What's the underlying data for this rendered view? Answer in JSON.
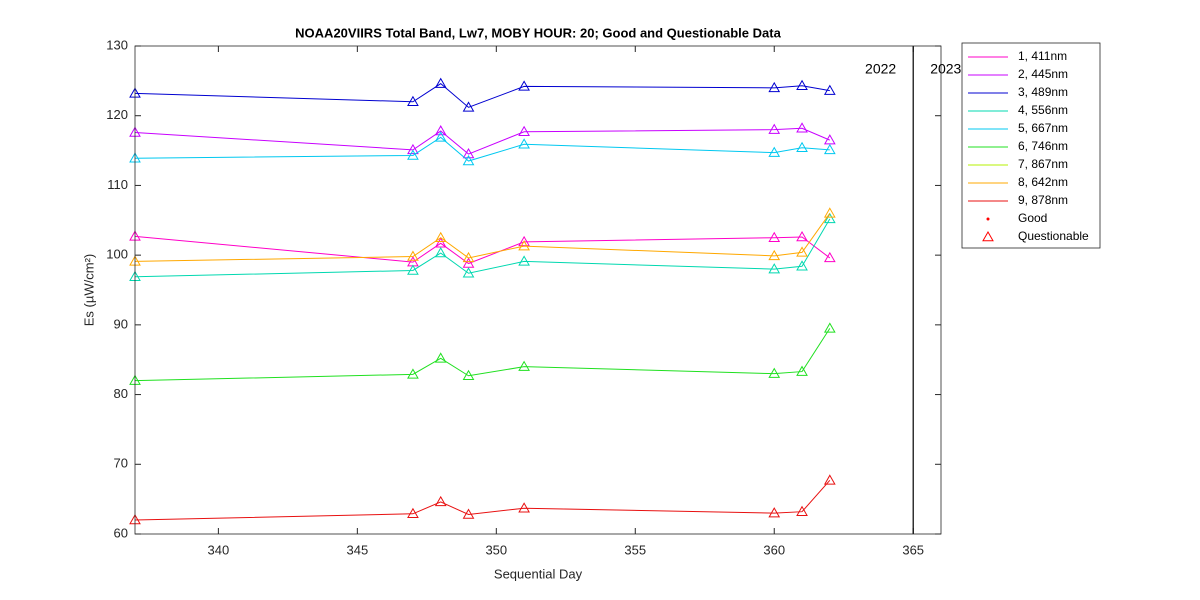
{
  "chart_data": {
    "type": "line",
    "title": "NOAA20VIIRS Total Band,  Lw7, MOBY HOUR: 20;  Good and Questionable Data",
    "xlabel": "Sequential Day",
    "ylabel": "Es (µW/cm²)",
    "x": [
      337,
      347,
      348,
      349,
      351,
      360,
      361,
      362
    ],
    "xlim": [
      337,
      366
    ],
    "xticks": [
      340,
      345,
      350,
      355,
      360,
      365
    ],
    "ylim": [
      60,
      130
    ],
    "yticks": [
      60,
      70,
      80,
      90,
      100,
      110,
      120,
      130
    ],
    "year_boundary": 365,
    "annotations": [
      {
        "text": "2022"
      },
      {
        "text": "2023"
      }
    ],
    "series": [
      {
        "name": "1, 411nm",
        "color": "#ff00c8",
        "values": [
          102.7,
          99.0,
          101.7,
          98.8,
          101.9,
          102.5,
          102.6,
          99.6
        ]
      },
      {
        "name": "2, 445nm",
        "color": "#c800ff",
        "values": [
          117.6,
          115.1,
          117.8,
          114.5,
          117.7,
          118.0,
          118.2,
          116.5
        ]
      },
      {
        "name": "3, 489nm",
        "color": "#0000d0",
        "values": [
          123.2,
          122.0,
          124.6,
          121.2,
          124.2,
          124.0,
          124.3,
          123.6
        ]
      },
      {
        "name": "4, 556nm",
        "color": "#00d8b0",
        "values": [
          96.9,
          97.8,
          100.3,
          97.4,
          99.1,
          98.0,
          98.4,
          105.2
        ]
      },
      {
        "name": "5, 667nm",
        "color": "#00c8f0",
        "values": [
          113.9,
          114.3,
          116.9,
          113.5,
          115.9,
          114.7,
          115.4,
          115.1
        ]
      },
      {
        "name": "6, 746nm",
        "color": "#20e020",
        "values": [
          82.0,
          82.9,
          85.2,
          82.7,
          84.0,
          83.0,
          83.3,
          89.5
        ]
      },
      {
        "name": "7, 867nm",
        "color": "#b4f000",
        "values": [
          null,
          null,
          null,
          null,
          null,
          null,
          null,
          null
        ]
      },
      {
        "name": "8, 642nm",
        "color": "#ffa800",
        "values": [
          99.1,
          99.8,
          102.5,
          99.6,
          101.3,
          99.9,
          100.4,
          106.0
        ]
      },
      {
        "name": "9, 878nm",
        "color": "#e81010",
        "values": [
          62.0,
          62.9,
          64.6,
          62.8,
          63.7,
          63.0,
          63.2,
          67.7
        ]
      }
    ],
    "marker_legend": [
      {
        "name": "Good",
        "color": "#ff0000"
      },
      {
        "name": "Questionable",
        "color": "#ff0000"
      }
    ]
  }
}
